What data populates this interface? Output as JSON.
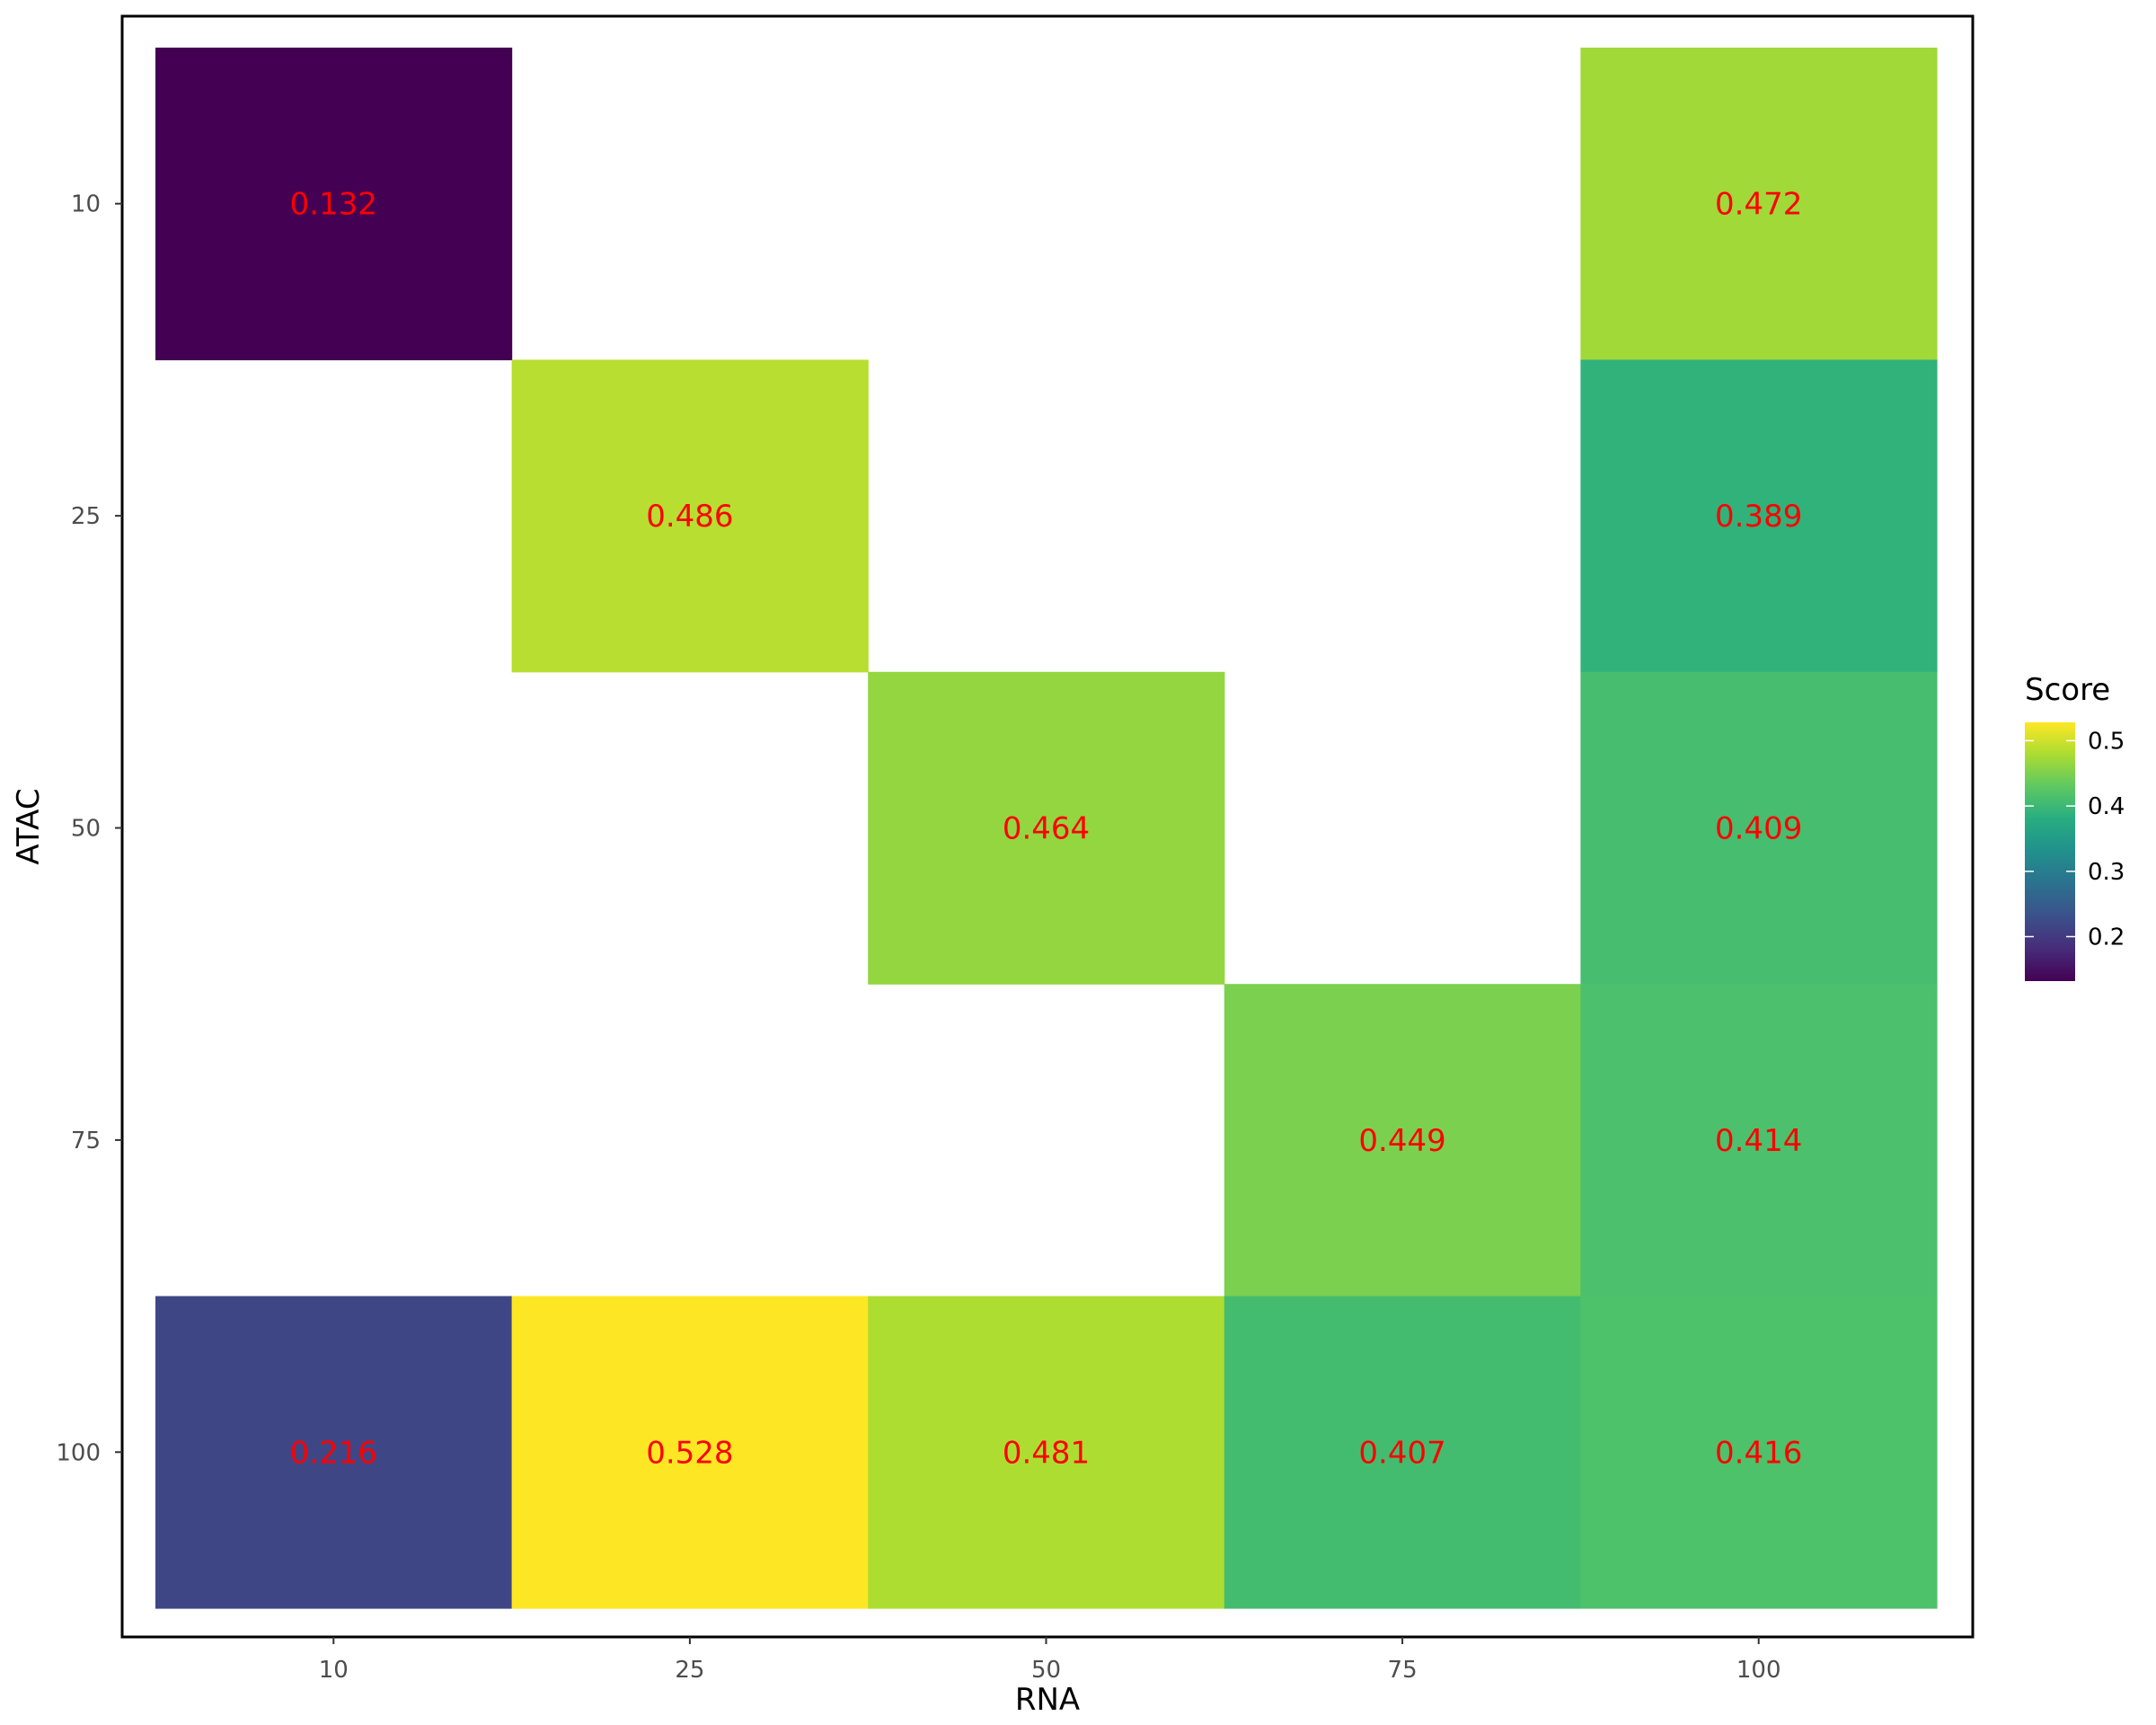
{
  "chart_data": {
    "type": "heatmap",
    "title": "",
    "xlabel": "RNA",
    "ylabel": "ATAC",
    "x_categories": [
      "10",
      "25",
      "50",
      "75",
      "100"
    ],
    "y_categories": [
      "10",
      "25",
      "50",
      "75",
      "100"
    ],
    "cells": [
      {
        "x": "10",
        "y": "10",
        "value": 0.132,
        "label": "0.132"
      },
      {
        "x": "100",
        "y": "10",
        "value": 0.472,
        "label": "0.472"
      },
      {
        "x": "25",
        "y": "25",
        "value": 0.486,
        "label": "0.486"
      },
      {
        "x": "100",
        "y": "25",
        "value": 0.389,
        "label": "0.389"
      },
      {
        "x": "50",
        "y": "50",
        "value": 0.464,
        "label": "0.464"
      },
      {
        "x": "100",
        "y": "50",
        "value": 0.409,
        "label": "0.409"
      },
      {
        "x": "75",
        "y": "75",
        "value": 0.449,
        "label": "0.449"
      },
      {
        "x": "100",
        "y": "75",
        "value": 0.414,
        "label": "0.414"
      },
      {
        "x": "10",
        "y": "100",
        "value": 0.216,
        "label": "0.216"
      },
      {
        "x": "25",
        "y": "100",
        "value": 0.528,
        "label": "0.528"
      },
      {
        "x": "50",
        "y": "100",
        "value": 0.481,
        "label": "0.481"
      },
      {
        "x": "75",
        "y": "100",
        "value": 0.407,
        "label": "0.407"
      },
      {
        "x": "100",
        "y": "100",
        "value": 0.416,
        "label": "0.416"
      }
    ],
    "legend": {
      "title": "Score",
      "placement": "right",
      "range": [
        0.132,
        0.528
      ],
      "ticks": [
        0.2,
        0.3,
        0.4,
        0.5
      ],
      "tick_labels": [
        "0.2",
        "0.3",
        "0.4",
        "0.5"
      ]
    },
    "colormap": "viridis",
    "label_color": "#ff0000",
    "grid": false,
    "panel_border": true
  }
}
